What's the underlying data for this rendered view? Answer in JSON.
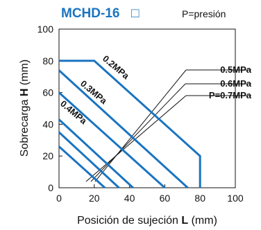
{
  "chart_data": {
    "type": "line",
    "title_text": "MCHD-16",
    "title_symbol": "□",
    "pressure_note": "P=presión",
    "xlabel_prefix": "Posición de sujeción ",
    "xlabel_bold": "L",
    "xlabel_unit": " (mm)",
    "ylabel_prefix": "Sobrecarga ",
    "ylabel_bold": "H",
    "ylabel_unit": " (mm)",
    "xlim": [
      0,
      100
    ],
    "ylim": [
      0,
      100
    ],
    "xticks": [
      0,
      20,
      40,
      60,
      80,
      100
    ],
    "yticks": [
      0,
      20,
      40,
      60,
      80,
      100
    ],
    "grid": false,
    "line_color": "#1a74c1",
    "series": [
      {
        "name": "0.2MPa",
        "points": [
          [
            0,
            80
          ],
          [
            20,
            80
          ],
          [
            80,
            20
          ],
          [
            80,
            0
          ]
        ]
      },
      {
        "name": "0.3MPa",
        "points": [
          [
            0,
            74
          ],
          [
            73,
            0
          ]
        ]
      },
      {
        "name": "0.4MPa",
        "points": [
          [
            0,
            60
          ],
          [
            60,
            0
          ]
        ]
      },
      {
        "name": "0.5MPa",
        "points": [
          [
            0,
            43
          ],
          [
            42,
            0
          ]
        ]
      },
      {
        "name": "0.6MPa",
        "points": [
          [
            0,
            35
          ],
          [
            34,
            0
          ]
        ]
      },
      {
        "name": "P=0.7MPa",
        "points": [
          [
            0,
            26
          ],
          [
            26,
            0
          ]
        ]
      }
    ]
  }
}
